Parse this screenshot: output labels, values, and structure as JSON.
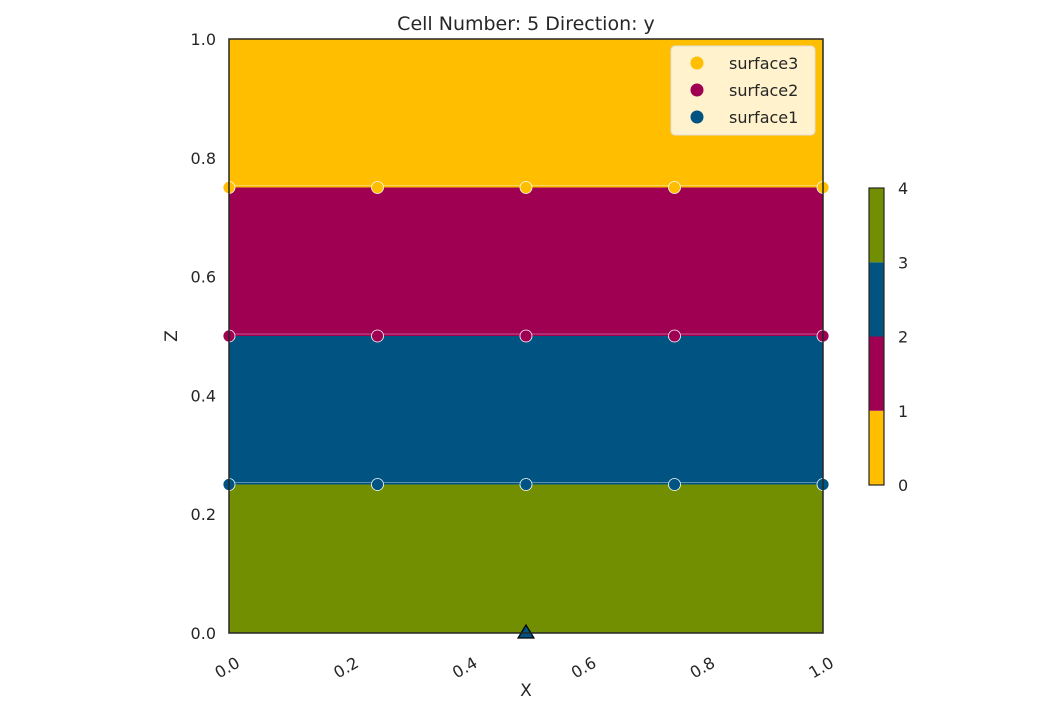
{
  "chart_data": {
    "type": "heatmap",
    "title": "Cell Number: 5 Direction: y",
    "xlabel": "X",
    "ylabel": "Z",
    "xlim": [
      0.0,
      1.0
    ],
    "ylim": [
      0.0,
      1.0
    ],
    "x_ticks": [
      "0.0",
      "0.2",
      "0.4",
      "0.6",
      "0.8",
      "1.0"
    ],
    "y_ticks": [
      "0.0",
      "0.2",
      "0.4",
      "0.6",
      "0.8",
      "1.0"
    ],
    "grid": false,
    "legend_position": "top-right",
    "layers": [
      {
        "z_min": 0.0,
        "z_max": 0.25,
        "value": 4,
        "color": "#728f02"
      },
      {
        "z_min": 0.25,
        "z_max": 0.5,
        "value": 3,
        "color": "#015482"
      },
      {
        "z_min": 0.5,
        "z_max": 0.75,
        "value": 2,
        "color": "#9f0052"
      },
      {
        "z_min": 0.75,
        "z_max": 1.0,
        "value": 1,
        "color": "#ffbe00"
      }
    ],
    "series": [
      {
        "name": "surface3",
        "color": "#ffbe00",
        "x": [
          0.0,
          0.25,
          0.5,
          0.75,
          1.0
        ],
        "y": [
          0.75,
          0.75,
          0.75,
          0.75,
          0.75
        ]
      },
      {
        "name": "surface2",
        "color": "#9f0052",
        "x": [
          0.0,
          0.25,
          0.5,
          0.75,
          1.0
        ],
        "y": [
          0.5,
          0.5,
          0.5,
          0.5,
          0.5
        ]
      },
      {
        "name": "surface1",
        "color": "#015482",
        "x": [
          0.0,
          0.25,
          0.5,
          0.75,
          1.0
        ],
        "y": [
          0.25,
          0.25,
          0.25,
          0.25,
          0.25
        ]
      }
    ],
    "orientation_marker": {
      "x": 0.5,
      "y": 0.0,
      "color": "#015482"
    },
    "colorbar": {
      "ticks": [
        "0",
        "1",
        "2",
        "3",
        "4"
      ],
      "range": [
        0,
        4
      ],
      "segments": [
        {
          "from": 0,
          "to": 1,
          "color": "#ffbe00"
        },
        {
          "from": 1,
          "to": 2,
          "color": "#9f0052"
        },
        {
          "from": 2,
          "to": 3,
          "color": "#015482"
        },
        {
          "from": 3,
          "to": 4,
          "color": "#728f02"
        }
      ]
    }
  }
}
